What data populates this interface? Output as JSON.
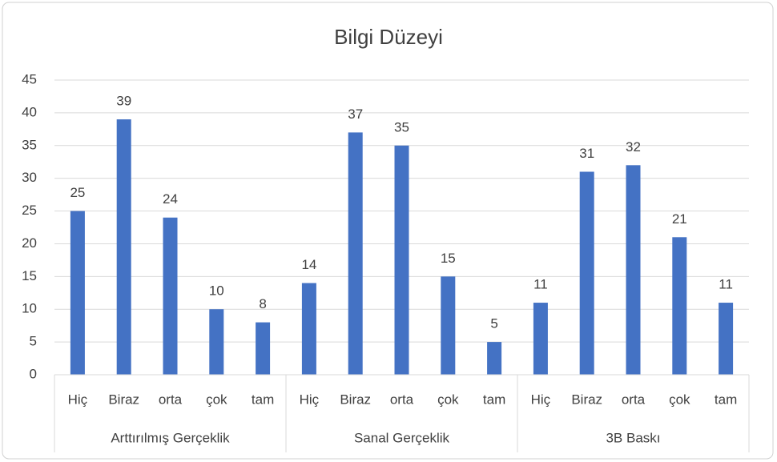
{
  "chart_data": {
    "type": "bar",
    "title": "Bilgi Düzeyi",
    "color": "#4472c4",
    "ylim": [
      0,
      45
    ],
    "yticks": [
      0,
      5,
      10,
      15,
      20,
      25,
      30,
      35,
      40,
      45
    ],
    "grid": true,
    "groups": [
      {
        "name": "Arttırılmış Gerçeklik",
        "categories": [
          "Hiç",
          "Biraz",
          "orta",
          "çok",
          "tam"
        ],
        "values": [
          25,
          39,
          24,
          10,
          8
        ]
      },
      {
        "name": "Sanal Gerçeklik",
        "categories": [
          "Hiç",
          "Biraz",
          "orta",
          "çok",
          "tam"
        ],
        "values": [
          14,
          37,
          35,
          15,
          5
        ]
      },
      {
        "name": "3B Baskı",
        "categories": [
          "Hiç",
          "Biraz",
          "orta",
          "çok",
          "tam"
        ],
        "values": [
          11,
          31,
          32,
          21,
          11
        ]
      }
    ]
  }
}
